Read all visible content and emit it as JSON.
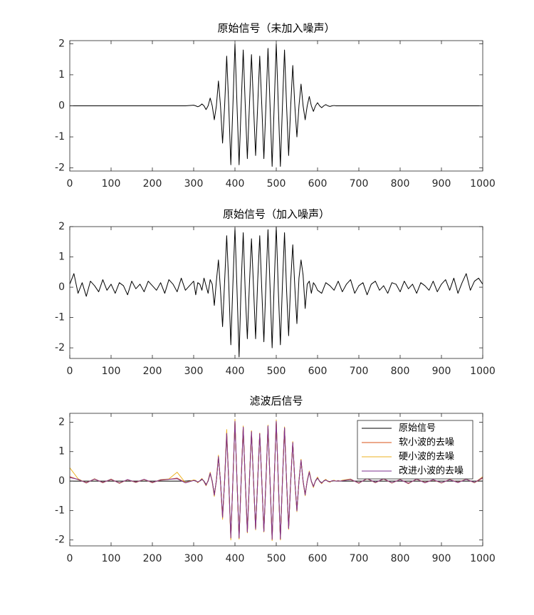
{
  "chart_data": [
    {
      "type": "line",
      "title": "原始信号（未加入噪声）",
      "x": [
        0,
        20,
        40,
        60,
        80,
        100,
        120,
        140,
        160,
        180,
        200,
        220,
        240,
        260,
        280,
        300,
        305,
        310,
        315,
        320,
        325,
        330,
        335,
        340,
        345,
        350,
        355,
        360,
        365,
        370,
        375,
        380,
        385,
        390,
        395,
        400,
        405,
        410,
        415,
        420,
        425,
        430,
        435,
        440,
        445,
        450,
        455,
        460,
        465,
        470,
        475,
        480,
        485,
        490,
        495,
        500,
        505,
        510,
        515,
        520,
        525,
        530,
        535,
        540,
        545,
        550,
        555,
        560,
        565,
        570,
        575,
        580,
        585,
        590,
        595,
        600,
        605,
        610,
        615,
        620,
        625,
        630,
        635,
        640,
        645,
        650,
        655,
        660,
        680,
        700,
        720,
        740,
        760,
        780,
        800,
        820,
        840,
        860,
        880,
        900,
        920,
        940,
        960,
        980,
        1000
      ],
      "series": [
        {
          "color": "#000000",
          "values": [
            0,
            0,
            0,
            0,
            0,
            0,
            0,
            0,
            0,
            0,
            0,
            0,
            0,
            0,
            0,
            0.02,
            0,
            -0.03,
            0,
            0.06,
            0,
            -0.12,
            0,
            0.25,
            0,
            -0.45,
            0,
            0.8,
            0,
            -1.2,
            0,
            1.6,
            0,
            -1.9,
            0,
            2.0,
            0,
            -1.9,
            0,
            1.8,
            0,
            -1.7,
            0,
            1.65,
            0,
            -1.6,
            0,
            1.6,
            0,
            -1.7,
            0,
            1.85,
            0,
            -1.95,
            0,
            2.0,
            0,
            -1.95,
            0,
            1.8,
            0,
            -1.6,
            0,
            1.3,
            0,
            -1.0,
            0,
            0.7,
            0,
            -0.45,
            0,
            0.3,
            0,
            -0.18,
            0,
            0.1,
            0,
            -0.06,
            0,
            0.04,
            0,
            -0.02,
            0,
            0.01,
            0,
            0,
            0,
            0,
            0,
            0,
            0,
            0,
            0,
            0,
            0,
            0,
            0,
            0,
            0,
            0,
            0,
            0,
            0,
            0,
            0
          ]
        }
      ],
      "xlim": [
        0,
        1000
      ],
      "xticks": [
        0,
        100,
        200,
        300,
        400,
        500,
        600,
        700,
        800,
        900,
        1000
      ],
      "ylim": [
        -2.1,
        2.1
      ],
      "yticks": [
        -2,
        -1,
        0,
        1,
        2
      ]
    },
    {
      "type": "line",
      "title": "原始信号（加入噪声）",
      "x": [
        0,
        10,
        20,
        30,
        40,
        50,
        60,
        70,
        80,
        90,
        100,
        110,
        120,
        130,
        140,
        150,
        160,
        170,
        180,
        190,
        200,
        210,
        220,
        230,
        240,
        250,
        260,
        270,
        280,
        290,
        300,
        305,
        310,
        315,
        320,
        325,
        330,
        335,
        340,
        345,
        350,
        355,
        360,
        365,
        370,
        375,
        380,
        385,
        390,
        395,
        400,
        405,
        410,
        415,
        420,
        425,
        430,
        435,
        440,
        445,
        450,
        455,
        460,
        465,
        470,
        475,
        480,
        485,
        490,
        495,
        500,
        505,
        510,
        515,
        520,
        525,
        530,
        535,
        540,
        545,
        550,
        555,
        560,
        565,
        570,
        575,
        580,
        585,
        590,
        595,
        600,
        610,
        620,
        630,
        640,
        650,
        660,
        670,
        680,
        690,
        700,
        710,
        720,
        730,
        740,
        750,
        760,
        770,
        780,
        790,
        800,
        810,
        820,
        830,
        840,
        850,
        860,
        870,
        880,
        890,
        900,
        910,
        920,
        930,
        940,
        950,
        960,
        970,
        980,
        990,
        1000
      ],
      "series": [
        {
          "color": "#000000",
          "values": [
            0.1,
            0.45,
            -0.2,
            0.15,
            -0.3,
            0.2,
            0.05,
            -0.15,
            0.25,
            -0.1,
            0.1,
            -0.2,
            0.15,
            0.05,
            -0.25,
            0.2,
            -0.05,
            0.1,
            -0.15,
            0.2,
            0.05,
            -0.1,
            0.15,
            -0.2,
            0.25,
            0.1,
            -0.15,
            0.3,
            -0.1,
            0.05,
            0.2,
            -0.25,
            0.15,
            0.1,
            -0.1,
            0.3,
            0.05,
            -0.2,
            0.25,
            0.1,
            -0.6,
            0.2,
            0.9,
            -0.1,
            -1.3,
            0.2,
            1.7,
            0.1,
            -1.9,
            0.1,
            1.95,
            -0.1,
            -2.3,
            0.1,
            1.8,
            -0.2,
            -1.7,
            0.1,
            1.6,
            0,
            -1.7,
            0.2,
            1.7,
            -0.1,
            -1.8,
            0.1,
            1.9,
            0,
            -2.0,
            0.1,
            2.0,
            -0.1,
            -1.9,
            0.1,
            1.8,
            -0.1,
            -1.6,
            0.2,
            1.4,
            0,
            -1.2,
            0.3,
            0.9,
            0.4,
            -0.7,
            0.1,
            0.2,
            -0.2,
            0.15,
            0.05,
            -0.1,
            -0.2,
            0.15,
            0.05,
            -0.1,
            0.2,
            -0.15,
            0.1,
            0.25,
            -0.2,
            0.05,
            0.15,
            -0.25,
            0.1,
            0.2,
            -0.1,
            0.05,
            -0.2,
            0.15,
            0.1,
            -0.15,
            0.2,
            -0.05,
            0.1,
            -0.2,
            0.15,
            0.05,
            -0.1,
            0.2,
            -0.15,
            0.1,
            0.25,
            -0.1,
            0.3,
            -0.2,
            0.15,
            0.45,
            -0.1,
            0.2,
            0.3,
            0.1
          ]
        }
      ],
      "xlim": [
        0,
        1000
      ],
      "xticks": [
        0,
        100,
        200,
        300,
        400,
        500,
        600,
        700,
        800,
        900,
        1000
      ],
      "ylim": [
        -2.35,
        2
      ],
      "yticks": [
        -2,
        -1,
        0,
        1,
        2
      ]
    },
    {
      "type": "line",
      "title": "滤波后信号",
      "x": [
        0,
        20,
        40,
        60,
        80,
        100,
        120,
        140,
        160,
        180,
        200,
        220,
        240,
        260,
        280,
        300,
        305,
        310,
        315,
        320,
        325,
        330,
        335,
        340,
        345,
        350,
        355,
        360,
        365,
        370,
        375,
        380,
        385,
        390,
        395,
        400,
        405,
        410,
        415,
        420,
        425,
        430,
        435,
        440,
        445,
        450,
        455,
        460,
        465,
        470,
        475,
        480,
        485,
        490,
        495,
        500,
        505,
        510,
        515,
        520,
        525,
        530,
        535,
        540,
        545,
        550,
        555,
        560,
        565,
        570,
        575,
        580,
        585,
        590,
        595,
        600,
        605,
        610,
        615,
        620,
        625,
        630,
        635,
        640,
        645,
        650,
        655,
        660,
        680,
        700,
        720,
        740,
        760,
        780,
        800,
        820,
        840,
        860,
        880,
        900,
        920,
        940,
        960,
        980,
        1000
      ],
      "series": [
        {
          "name": "原始信号",
          "color": "#000000",
          "values": [
            0,
            0,
            0,
            0,
            0,
            0,
            0,
            0,
            0,
            0,
            0,
            0,
            0,
            0,
            0,
            0.02,
            0,
            -0.03,
            0,
            0.06,
            0,
            -0.12,
            0,
            0.25,
            0,
            -0.45,
            0,
            0.8,
            0,
            -1.2,
            0,
            1.6,
            0,
            -1.9,
            0,
            2.0,
            0,
            -1.9,
            0,
            1.8,
            0,
            -1.7,
            0,
            1.65,
            0,
            -1.6,
            0,
            1.6,
            0,
            -1.7,
            0,
            1.85,
            0,
            -1.95,
            0,
            2.0,
            0,
            -1.95,
            0,
            1.8,
            0,
            -1.6,
            0,
            1.3,
            0,
            -1.0,
            0,
            0.7,
            0,
            -0.45,
            0,
            0.3,
            0,
            -0.18,
            0,
            0.1,
            0,
            -0.06,
            0,
            0.04,
            0,
            -0.02,
            0,
            0.01,
            0,
            0,
            0,
            0,
            0,
            0,
            0,
            0,
            0,
            0,
            0,
            0,
            0,
            0,
            0,
            0,
            0,
            0,
            0,
            0,
            0
          ]
        },
        {
          "name": "软小波的去噪",
          "color": "#d95319",
          "values": [
            0.15,
            0.05,
            -0.05,
            0.06,
            -0.04,
            0.05,
            -0.06,
            0.04,
            -0.03,
            0.05,
            -0.04,
            0.03,
            0.06,
            0.1,
            -0.05,
            0.03,
            0.02,
            -0.05,
            0.01,
            0.08,
            -0.02,
            -0.15,
            0.02,
            0.28,
            -0.03,
            -0.5,
            0.03,
            0.85,
            -0.04,
            -1.25,
            0.05,
            1.65,
            -0.05,
            -1.95,
            0.04,
            2.05,
            -0.04,
            -1.95,
            0.03,
            1.85,
            -0.03,
            -1.75,
            0.02,
            1.7,
            -0.02,
            -1.65,
            0.02,
            1.62,
            -0.02,
            -1.72,
            0.03,
            1.88,
            -0.03,
            -2.0,
            0.03,
            2.05,
            -0.03,
            -1.98,
            0.02,
            1.82,
            -0.02,
            -1.62,
            0.02,
            1.32,
            -0.02,
            -1.02,
            0.02,
            0.72,
            -0.02,
            -0.48,
            0.02,
            0.32,
            -0.01,
            -0.2,
            0.01,
            0.12,
            -0.01,
            -0.08,
            0.01,
            0.05,
            -0.01,
            -0.03,
            0.01,
            0.02,
            0,
            0.01,
            0,
            0.02,
            0.05,
            -0.06,
            0.08,
            -0.05,
            0.07,
            -0.06,
            0.05,
            -0.07,
            0.06,
            -0.05,
            0.04,
            -0.06,
            0.05,
            -0.04,
            0.06,
            -0.05,
            0.1
          ]
        },
        {
          "name": "硬小波的去噪",
          "color": "#edb120",
          "values": [
            0.45,
            0.08,
            -0.07,
            0.08,
            -0.06,
            0.07,
            -0.08,
            0.05,
            -0.05,
            0.06,
            -0.06,
            0.05,
            0.07,
            0.3,
            -0.06,
            0.04,
            0.02,
            -0.06,
            0.01,
            0.09,
            -0.02,
            -0.16,
            0.02,
            0.3,
            -0.03,
            -0.52,
            0.03,
            0.88,
            -0.04,
            -1.3,
            0.05,
            1.75,
            -0.05,
            -2.0,
            0.04,
            2.1,
            -0.04,
            -1.97,
            0.03,
            1.87,
            -0.03,
            -1.76,
            0.02,
            1.71,
            -0.02,
            -1.66,
            0.02,
            1.63,
            -0.02,
            -1.73,
            0.03,
            1.9,
            -0.03,
            -2.02,
            0.03,
            2.08,
            -0.03,
            -2.0,
            0.02,
            1.84,
            -0.02,
            -1.64,
            0.02,
            1.34,
            -0.02,
            -1.04,
            0.02,
            0.74,
            -0.02,
            -0.5,
            0.02,
            0.34,
            -0.01,
            -0.22,
            0.01,
            0.14,
            -0.01,
            -0.09,
            0.01,
            0.06,
            -0.01,
            -0.04,
            0.01,
            0.03,
            0,
            0.02,
            0,
            0.03,
            0.07,
            -0.08,
            0.1,
            -0.06,
            0.09,
            -0.07,
            0.06,
            -0.09,
            0.08,
            -0.06,
            0.05,
            -0.07,
            0.06,
            -0.05,
            0.07,
            -0.06,
            0.15
          ]
        },
        {
          "name": "改进小波的去噪",
          "color": "#7e2f8e",
          "values": [
            0.12,
            0.06,
            -0.06,
            0.07,
            -0.05,
            0.06,
            -0.07,
            0.05,
            -0.04,
            0.06,
            -0.05,
            0.04,
            0.06,
            0.08,
            -0.06,
            0.02,
            0.01,
            -0.04,
            0.01,
            0.07,
            -0.01,
            -0.14,
            0.01,
            0.27,
            -0.02,
            -0.48,
            0.02,
            0.83,
            -0.03,
            -1.23,
            0.04,
            1.62,
            -0.04,
            -1.93,
            0.03,
            2.03,
            -0.03,
            -1.93,
            0.02,
            1.83,
            -0.02,
            -1.73,
            0.01,
            1.68,
            -0.01,
            -1.63,
            0.01,
            1.61,
            -0.01,
            -1.71,
            0.02,
            1.87,
            -0.02,
            -1.98,
            0.02,
            2.03,
            -0.02,
            -1.97,
            0.01,
            1.81,
            -0.01,
            -1.61,
            0.01,
            1.31,
            -0.01,
            -1.01,
            0.01,
            0.71,
            -0.01,
            -0.47,
            0.01,
            0.31,
            -0.01,
            -0.19,
            0.01,
            0.11,
            -0.01,
            -0.07,
            0.01,
            0.04,
            -0.01,
            -0.02,
            0.01,
            0.01,
            0,
            0.01,
            0,
            0.01,
            0.06,
            -0.07,
            0.09,
            -0.05,
            0.08,
            -0.06,
            0.05,
            -0.08,
            0.07,
            -0.06,
            0.05,
            -0.06,
            0.05,
            -0.05,
            0.06,
            -0.05,
            0.12
          ]
        }
      ],
      "xlim": [
        0,
        1000
      ],
      "xticks": [
        0,
        100,
        200,
        300,
        400,
        500,
        600,
        700,
        800,
        900,
        1000
      ],
      "ylim": [
        -2.2,
        2.3
      ],
      "yticks": [
        -2,
        -1,
        0,
        1,
        2
      ],
      "legend": "upper right"
    }
  ]
}
